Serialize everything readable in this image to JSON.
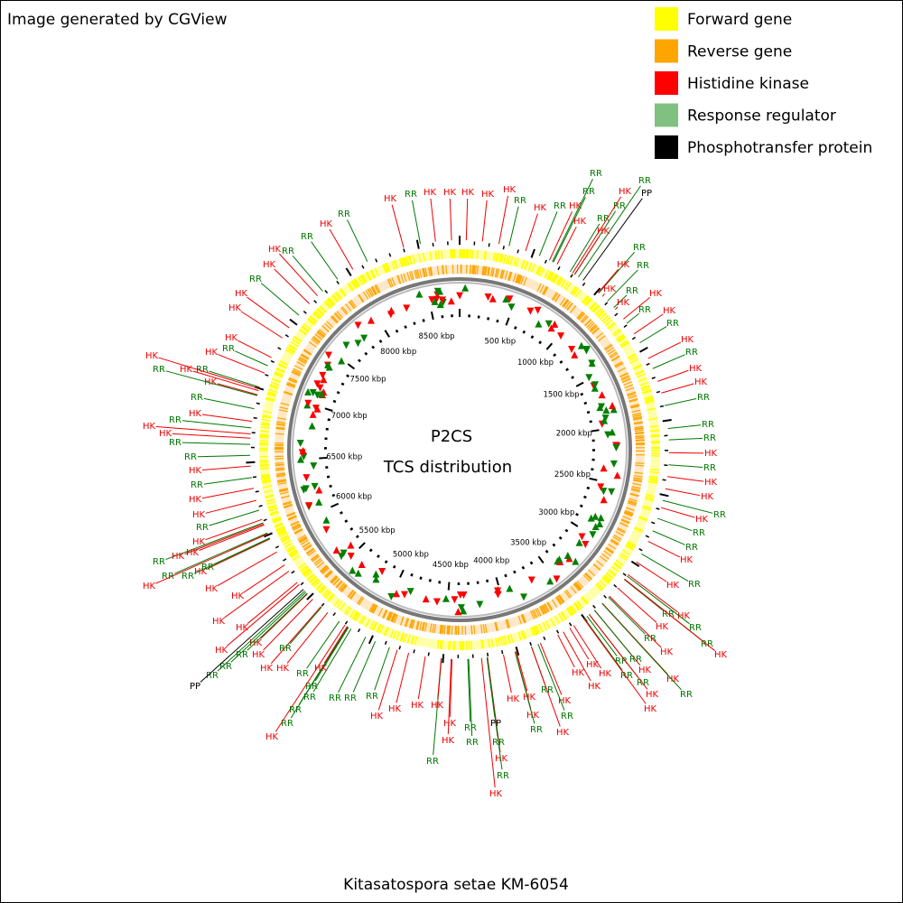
{
  "header": {
    "credit": "Image generated by CGView"
  },
  "legend": [
    {
      "label": "Forward gene",
      "color": "#ffff00"
    },
    {
      "label": "Reverse gene",
      "color": "#ffa500"
    },
    {
      "label": "Histidine kinase",
      "color": "#ff0000"
    },
    {
      "label": "Response regulator",
      "color": "#80c080"
    },
    {
      "label": "Phosphotransfer protein",
      "color": "#000000"
    }
  ],
  "center": {
    "title": "P2CS",
    "subtitle": "TCS distribution"
  },
  "footer": {
    "organism": "Kitasatospora setae KM-6054"
  },
  "scale_labels": [
    "500 kbp",
    "1000 kbp",
    "1500 kbp",
    "2000 kbp",
    "2500 kbp",
    "3000 kbp",
    "3500 kbp",
    "4000 kbp",
    "4500 kbp",
    "5000 kbp",
    "5500 kbp",
    "6000 kbp",
    "6500 kbp",
    "7000 kbp",
    "7500 kbp",
    "8000 kbp",
    "8500 kbp"
  ],
  "label_colors": {
    "HK": "#ee0000",
    "RR": "#007700",
    "PP": "#000000"
  },
  "features": [
    "HK",
    "RR",
    "HK",
    "HK",
    "HK",
    "HK",
    "HK",
    "RR",
    "HK",
    "RR",
    "HK",
    "RR",
    "RR",
    "HK",
    "RR",
    "RR",
    "HK",
    "RR",
    "PP",
    "HK",
    "RR",
    "HK",
    "RR",
    "HK",
    "RR",
    "HK",
    "HK",
    "RR",
    "HK",
    "RR",
    "HK",
    "RR",
    "HK",
    "HK",
    "RR",
    "RR",
    "RR",
    "HK",
    "RR",
    "HK",
    "HK",
    "RR",
    "HK",
    "RR",
    "RR",
    "HK",
    "RR",
    "HK",
    "RR",
    "HK",
    "HK",
    "RR",
    "RR",
    "HK",
    "RR",
    "HK",
    "HK",
    "RR",
    "RR",
    "RR",
    "HK",
    "RR",
    "RR",
    "HK",
    "HK",
    "HK",
    "HK",
    "HK",
    "HK",
    "RR",
    "HK",
    "RR",
    "HK",
    "HK",
    "HK",
    "RR",
    "HK",
    "PP",
    "RR",
    "HK",
    "RR",
    "HK",
    "RR",
    "RR",
    "HK",
    "HK",
    "RR",
    "HK",
    "HK",
    "HK",
    "HK",
    "RR",
    "RR",
    "RR",
    "RR",
    "RR",
    "RR",
    "HK",
    "RR",
    "RR",
    "HK",
    "HK",
    "HK",
    "HK",
    "RR",
    "HK",
    "RR",
    "HK",
    "HK",
    "RR",
    "RR",
    "PP",
    "HK",
    "HK",
    "HK",
    "HK",
    "RR",
    "RR",
    "HK",
    "RR",
    "HK",
    "HK",
    "RR",
    "HK",
    "RR",
    "HK",
    "HK",
    "RR",
    "HK",
    "RR",
    "RR",
    "HK",
    "HK",
    "RR",
    "HK",
    "RR",
    "HK",
    "RR",
    "HK",
    "RR",
    "HK",
    "HK",
    "RR",
    "HK",
    "HK",
    "HK",
    "RR",
    "HK",
    "HK",
    "RR",
    "RR",
    "HK",
    "RR"
  ]
}
